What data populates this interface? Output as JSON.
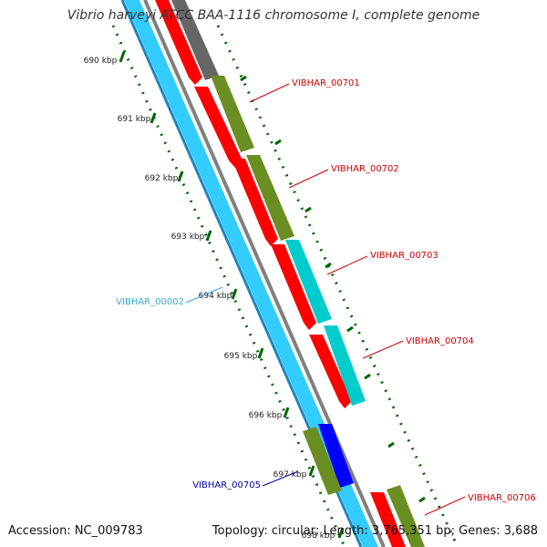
{
  "title": "Vibrio harveyi ATCC BAA-1116 chromosome I, complete genome",
  "footer": {
    "accession": "Accession: NC_009783",
    "summary": "Topology: circular; Length: 3,765,351 bp; Genes: 3,688"
  },
  "ticks": [
    "690 kbp",
    "691 kbp",
    "692 kbp",
    "693 kbp",
    "694 kbp",
    "695 kbp",
    "696 kbp",
    "697 kbp",
    "698 kbp"
  ],
  "gene_labels": [
    {
      "text": "VIBHAR_00701",
      "color": "#cc0000"
    },
    {
      "text": "VIBHAR_00702",
      "color": "#cc0000"
    },
    {
      "text": "VIBHAR_00703",
      "color": "#cc0000"
    },
    {
      "text": "VIBHAR_00704",
      "color": "#cc0000"
    },
    {
      "text": "VIBHAR_00706",
      "color": "#cc0000"
    },
    {
      "text": "VIBHAR_00002",
      "color": "#33aadd"
    },
    {
      "text": "VIBHAR_00705",
      "color": "#0000aa"
    }
  ],
  "colors": {
    "cds_red": "#ff0000",
    "olive": "#6b8e23",
    "cyan": "#00cccc",
    "blue": "#0000ff",
    "dark_gray": "#666666",
    "backbone": "#808080",
    "contig": "#33ccff",
    "tick": "#006600",
    "tick_label": "#222222"
  }
}
